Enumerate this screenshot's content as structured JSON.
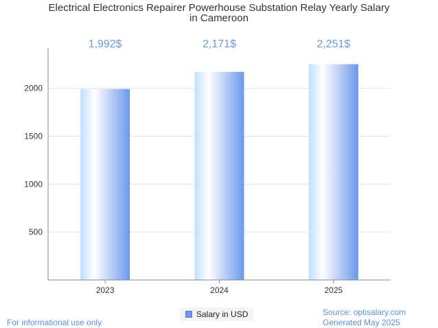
{
  "chart_data": {
    "type": "bar",
    "title_lines": [
      "Electrical Electronics Repairer Powerhouse Substation Relay Yearly Salary",
      "in Cameroon"
    ],
    "categories": [
      "2023",
      "2024",
      "2025"
    ],
    "series": [
      {
        "name": "Salary in USD",
        "values": [
          1992,
          2171,
          2251
        ]
      }
    ],
    "data_labels": [
      "1,992$",
      "2,171$",
      "2,251$"
    ],
    "yticks": [
      500,
      1000,
      1500,
      2000
    ],
    "ylim": [
      0,
      2420
    ],
    "grid": true,
    "legend": "bottom-center",
    "colors": {
      "bar_light": "#ffffff",
      "bar_mid": "#bfe0ff",
      "bar_dark": "#6b98ec",
      "label": "#6a9be0",
      "axis": "#888888",
      "grid": "#e3e3e3"
    }
  },
  "footer": {
    "disclaimer": "For informational use only",
    "source": "Source: optisalary.com",
    "generated": "Generated May 2025"
  }
}
